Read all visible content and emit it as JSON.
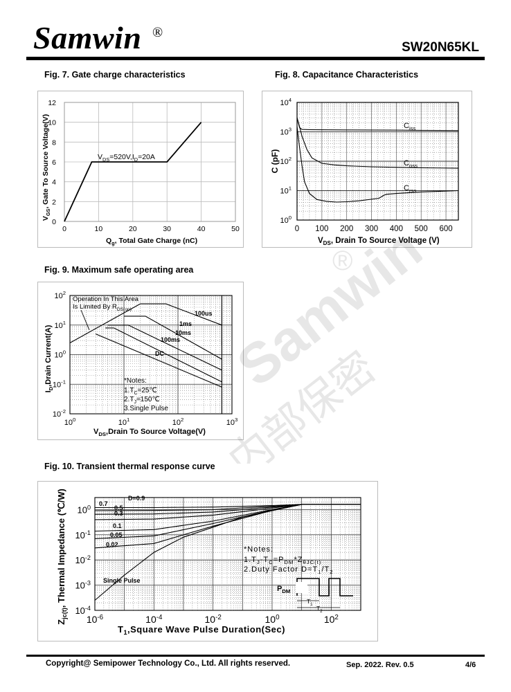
{
  "header": {
    "brand": "Samwin",
    "registered_mark": "®",
    "part_number": "SW20N65KL"
  },
  "watermark": {
    "brand": "Samwin",
    "mark": "®",
    "chinese": "内部保密"
  },
  "fig7": {
    "title": "Fig. 7. Gate charge characteristics",
    "xlabel": "Qg, Total Gate Charge (nC)",
    "ylabel": "VGS, Gate To Source Voltage(V)",
    "annotation": "VDS=520V,ID=20A",
    "xticks": [
      "0",
      "10",
      "20",
      "30",
      "40",
      "50"
    ],
    "yticks": [
      "0",
      "2",
      "4",
      "6",
      "8",
      "10",
      "12"
    ]
  },
  "fig8": {
    "title": "Fig. 8. Capacitance Characteristics",
    "xlabel": "VDS, Drain To Source Voltage (V)",
    "ylabel": "C (pF)",
    "xticks": [
      "0",
      "100",
      "200",
      "300",
      "400",
      "500",
      "600"
    ],
    "yticks": [
      "10^0",
      "10^1",
      "10^2",
      "10^3",
      "10^4"
    ],
    "series_labels": [
      "Ciss",
      "Coss",
      "Crss"
    ]
  },
  "fig9": {
    "title": "Fig. 9. Maximum safe operating area",
    "xlabel": "VDS,Drain To Source Voltage(V)",
    "ylabel": "ID,Drain Current(A)",
    "note_area": [
      "Operation In This Area",
      "Is Limited By RDS(on)"
    ],
    "curve_labels": [
      "100us",
      "1ms",
      "10ms",
      "100ms",
      "DC"
    ],
    "notes": [
      "*Notes:",
      "1.TC=25℃",
      "2.TJ=150℃",
      "3.Single Pulse"
    ],
    "xticks": [
      "10^0",
      "10^1",
      "10^2",
      "10^3"
    ],
    "yticks": [
      "10^-2",
      "10^-1",
      "10^0",
      "10^1",
      "10^2"
    ]
  },
  "fig10": {
    "title": "Fig. 10. Transient thermal response curve",
    "xlabel": "T1,Square Wave Pulse Duration(Sec)",
    "ylabel": "Zjc(t), Thermal Impedance (℃/W)",
    "duty_labels": [
      "D=0.9",
      "0.7",
      "0.5",
      "0.3",
      "0.1",
      "0.05",
      "0.02",
      "Single Pulse"
    ],
    "notes": [
      "*Notes:",
      "1.TJ-TC=PDM*ZθJC(t)",
      "2.Duty Factor D=T1/T2"
    ],
    "pulse_labels": [
      "PDM",
      "T1",
      "T2"
    ],
    "xticks": [
      "10^-6",
      "10^-4",
      "10^-2",
      "10^0",
      "10^2"
    ],
    "yticks": [
      "10^-4",
      "10^-3",
      "10^-2",
      "10^-1",
      "10^0"
    ]
  },
  "chart_data": [
    {
      "type": "line",
      "title": "Fig. 7. Gate charge characteristics",
      "xlabel": "Qg, Total Gate Charge (nC)",
      "ylabel": "VGS, Gate To Source Voltage(V)",
      "xlim": [
        0,
        50
      ],
      "ylim": [
        0,
        12
      ],
      "grid": true,
      "series": [
        {
          "x": [
            0,
            8,
            30,
            40
          ],
          "y": [
            0,
            6,
            6,
            10
          ]
        }
      ]
    },
    {
      "type": "line",
      "title": "Fig. 8. Capacitance Characteristics",
      "xlabel": "VDS, Drain To Source Voltage (V)",
      "ylabel": "C (pF)",
      "xlim": [
        0,
        650
      ],
      "ylim": [
        1,
        10000
      ],
      "yscale": "log",
      "grid": true,
      "series": [
        {
          "name": "Ciss",
          "x": [
            0,
            10,
            20,
            50,
            100,
            200,
            300,
            400,
            500,
            650
          ],
          "y": [
            3000,
            1400,
            1200,
            1180,
            1170,
            1160,
            1150,
            1140,
            1120,
            1100
          ]
        },
        {
          "name": "Coss",
          "x": [
            0,
            10,
            20,
            40,
            60,
            100,
            150,
            200,
            300,
            400,
            500,
            650
          ],
          "y": [
            3000,
            1500,
            700,
            250,
            130,
            85,
            75,
            70,
            65,
            62,
            60,
            58
          ]
        },
        {
          "name": "Crss",
          "x": [
            0,
            10,
            20,
            30,
            50,
            80,
            120,
            160,
            200,
            250,
            330,
            350,
            360,
            400,
            500,
            650
          ],
          "y": [
            1500,
            300,
            70,
            20,
            8,
            5,
            4.3,
            4.1,
            4.2,
            4.5,
            5.5,
            7,
            7.5,
            8,
            9,
            10
          ]
        }
      ]
    },
    {
      "type": "line",
      "title": "Fig. 9. Maximum safe operating area",
      "xlabel": "VDS,Drain To Source Voltage(V)",
      "ylabel": "ID,Drain Current(A)",
      "xlim": [
        1,
        1000
      ],
      "ylim": [
        0.01,
        100
      ],
      "xscale": "log",
      "yscale": "log",
      "grid": true,
      "series": [
        {
          "name": "Rds(on) limit",
          "x": [
            1,
            20
          ],
          "y": [
            2.5,
            52
          ]
        },
        {
          "name": "100us",
          "x": [
            20,
            60,
            650,
            650
          ],
          "y": [
            52,
            52,
            10,
            2
          ]
        },
        {
          "name": "1ms",
          "x": [
            10,
            25,
            650
          ],
          "y": [
            20,
            20,
            0.7
          ]
        },
        {
          "name": "10ms",
          "x": [
            5,
            12,
            650
          ],
          "y": [
            10,
            10,
            0.3
          ]
        },
        {
          "name": "100ms",
          "x": [
            4.5,
            6.5,
            650
          ],
          "y": [
            8,
            8,
            0.12
          ]
        },
        {
          "name": "DC",
          "x": [
            3,
            650
          ],
          "y": [
            5,
            0.08
          ]
        }
      ]
    },
    {
      "type": "line",
      "title": "Fig. 10. Transient thermal response curve",
      "xlabel": "T1,Square Wave Pulse Duration(Sec)",
      "ylabel": "Zjc(t), Thermal Impedance (℃/W)",
      "xlim": [
        1e-06,
        1000
      ],
      "ylim": [
        0.0001,
        3
      ],
      "xscale": "log",
      "yscale": "log",
      "grid": true,
      "series": [
        {
          "name": "D=0.9",
          "x": [
            1e-06,
            0.0001,
            0.01,
            1,
            10,
            1000
          ],
          "y": [
            1.2,
            1.2,
            1.25,
            1.45,
            1.6,
            1.6
          ]
        },
        {
          "name": "0.7",
          "x": [
            1e-06,
            0.0001,
            0.01,
            1,
            10,
            1000
          ],
          "y": [
            0.9,
            0.92,
            1.0,
            1.35,
            1.6,
            1.6
          ]
        },
        {
          "name": "0.5",
          "x": [
            1e-06,
            0.0001,
            0.01,
            1,
            10,
            1000
          ],
          "y": [
            0.65,
            0.67,
            0.8,
            1.25,
            1.6,
            1.6
          ]
        },
        {
          "name": "0.3",
          "x": [
            1e-06,
            0.0001,
            0.01,
            1,
            10,
            1000
          ],
          "y": [
            0.4,
            0.42,
            0.6,
            1.15,
            1.6,
            1.6
          ]
        },
        {
          "name": "0.1",
          "x": [
            1e-06,
            0.0001,
            0.01,
            1,
            10,
            1000
          ],
          "y": [
            0.14,
            0.16,
            0.35,
            1.0,
            1.6,
            1.6
          ]
        },
        {
          "name": "0.05",
          "x": [
            1e-06,
            0.0001,
            0.01,
            1,
            10,
            1000
          ],
          "y": [
            0.07,
            0.09,
            0.28,
            0.95,
            1.6,
            1.6
          ]
        },
        {
          "name": "0.02",
          "x": [
            1e-06,
            0.0001,
            0.01,
            1,
            10,
            1000
          ],
          "y": [
            0.03,
            0.045,
            0.22,
            0.92,
            1.6,
            1.6
          ]
        },
        {
          "name": "Single Pulse",
          "x": [
            1e-06,
            1e-05,
            0.0001,
            0.001,
            0.01,
            0.1,
            1,
            10,
            1000
          ],
          "y": [
            0.00025,
            0.0025,
            0.02,
            0.08,
            0.2,
            0.5,
            0.9,
            1.6,
            1.6
          ]
        }
      ]
    }
  ],
  "footer": {
    "copyright": "Copyright@ Semipower Technology Co., Ltd. All rights reserved.",
    "date_rev": "Sep. 2022. Rev. 0.5",
    "page": "4/6"
  }
}
